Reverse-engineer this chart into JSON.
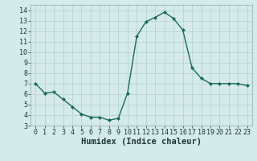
{
  "x": [
    0,
    1,
    2,
    3,
    4,
    5,
    6,
    7,
    8,
    9,
    10,
    11,
    12,
    13,
    14,
    15,
    16,
    17,
    18,
    19,
    20,
    21,
    22,
    23
  ],
  "y": [
    7.0,
    6.1,
    6.2,
    5.5,
    4.8,
    4.1,
    3.8,
    3.8,
    3.5,
    3.7,
    6.1,
    11.5,
    12.9,
    13.3,
    13.8,
    13.2,
    12.1,
    8.5,
    7.5,
    7.0,
    7.0,
    7.0,
    7.0,
    6.8
  ],
  "line_color": "#1a6b5e",
  "marker": "D",
  "marker_size": 2.0,
  "linewidth": 1.0,
  "xlabel": "Humidex (Indice chaleur)",
  "xlim": [
    -0.5,
    23.5
  ],
  "ylim": [
    3,
    14.5
  ],
  "yticks": [
    3,
    4,
    5,
    6,
    7,
    8,
    9,
    10,
    11,
    12,
    13,
    14
  ],
  "xticks": [
    0,
    1,
    2,
    3,
    4,
    5,
    6,
    7,
    8,
    9,
    10,
    11,
    12,
    13,
    14,
    15,
    16,
    17,
    18,
    19,
    20,
    21,
    22,
    23
  ],
  "bg_color": "#d5eaea",
  "grid_color": "#b8d4d4",
  "xlabel_fontsize": 7.5,
  "tick_fontsize": 6.0
}
